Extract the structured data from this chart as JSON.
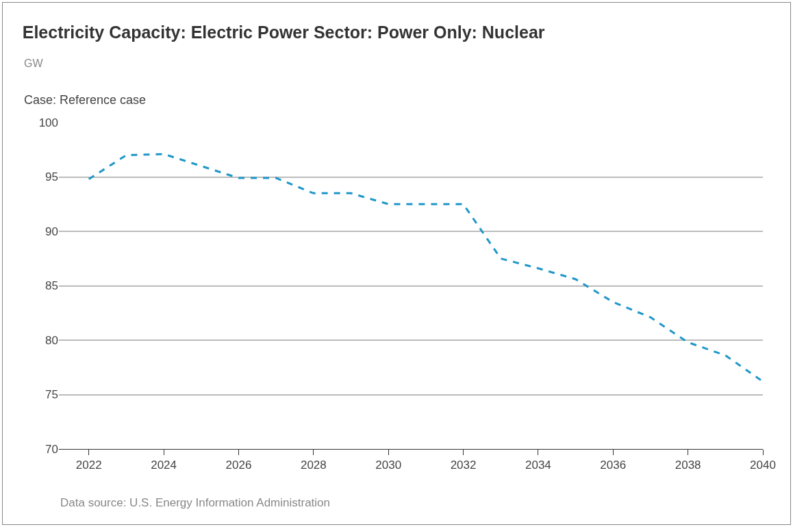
{
  "chart_data": {
    "type": "line",
    "title": "Electricity Capacity: Electric Power Sector: Power Only: Nuclear",
    "subtitle": "Case: Reference case",
    "ylabel": "GW",
    "x": [
      2022,
      2023,
      2024,
      2025,
      2026,
      2027,
      2028,
      2029,
      2030,
      2031,
      2032,
      2033,
      2034,
      2035,
      2036,
      2037,
      2038,
      2039,
      2040
    ],
    "series": [
      {
        "color": "#1f97c9",
        "values": [
          94.8,
          97.0,
          97.1,
          96.0,
          94.9,
          94.9,
          93.5,
          93.5,
          92.5,
          92.5,
          92.5,
          87.5,
          86.6,
          85.6,
          83.5,
          82.1,
          79.8,
          78.6,
          76.2
        ]
      }
    ],
    "xlim": [
      2021.2,
      2040
    ],
    "xticks": [
      2022,
      2024,
      2026,
      2028,
      2030,
      2032,
      2034,
      2036,
      2038,
      2040
    ],
    "ylim": [
      70,
      100
    ],
    "yticks": [
      70,
      75,
      80,
      85,
      90,
      95,
      100
    ],
    "grid": "y",
    "legend": false,
    "line_style": "dashed",
    "marker": "none",
    "annotations": [
      "Data source: U.S. Energy Information Administration"
    ]
  }
}
